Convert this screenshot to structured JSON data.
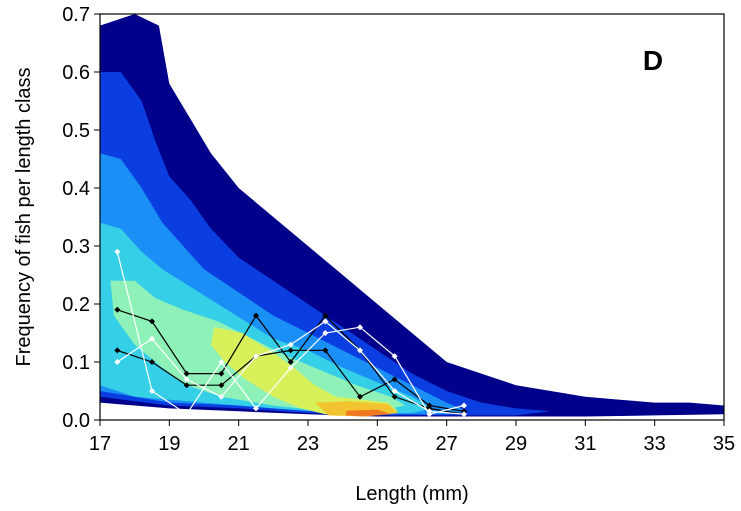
{
  "chart_data": {
    "type": "contour",
    "panel_label": "D",
    "xlabel": "Length (mm)",
    "ylabel": "Frequency  of fish per length class",
    "xlim": [
      17,
      35
    ],
    "ylim": [
      0,
      0.7
    ],
    "x_ticks": [
      "17",
      "19",
      "21",
      "23",
      "25",
      "27",
      "29",
      "31",
      "33",
      "35"
    ],
    "y_ticks": [
      "0.0",
      "0.1",
      "0.2",
      "0.3",
      "0.4",
      "0.5",
      "0.6",
      "0.7"
    ],
    "contour_colors": [
      "#00008b",
      "#0a3ee0",
      "#1a8ff5",
      "#35cfe8",
      "#8ef2b8",
      "#d8f05a",
      "#f4c430",
      "#f07820"
    ],
    "contour_levels": [
      {
        "level": 1,
        "color": "#00008b",
        "polygon": [
          [
            17,
            0.68
          ],
          [
            18,
            0.7
          ],
          [
            18.7,
            0.68
          ],
          [
            19,
            0.58
          ],
          [
            19.6,
            0.52
          ],
          [
            20.2,
            0.46
          ],
          [
            21,
            0.4
          ],
          [
            22,
            0.35
          ],
          [
            23,
            0.3
          ],
          [
            24,
            0.25
          ],
          [
            25,
            0.2
          ],
          [
            26,
            0.15
          ],
          [
            27,
            0.1
          ],
          [
            28,
            0.08
          ],
          [
            29,
            0.06
          ],
          [
            30,
            0.05
          ],
          [
            31,
            0.04
          ],
          [
            32,
            0.035
          ],
          [
            33,
            0.03
          ],
          [
            34,
            0.03
          ],
          [
            35,
            0.025
          ],
          [
            35,
            0.01
          ],
          [
            33,
            0.008
          ],
          [
            31,
            0.006
          ],
          [
            29,
            0.006
          ],
          [
            27,
            0.006
          ],
          [
            25,
            0.006
          ],
          [
            23,
            0.01
          ],
          [
            21,
            0.015
          ],
          [
            19,
            0.02
          ],
          [
            17,
            0.03
          ]
        ]
      },
      {
        "level": 2,
        "color": "#0a3ee0",
        "polygon": [
          [
            17,
            0.6
          ],
          [
            17.6,
            0.6
          ],
          [
            18.2,
            0.55
          ],
          [
            18.6,
            0.48
          ],
          [
            19,
            0.42
          ],
          [
            19.6,
            0.38
          ],
          [
            20.2,
            0.33
          ],
          [
            21,
            0.28
          ],
          [
            22,
            0.24
          ],
          [
            23,
            0.2
          ],
          [
            24,
            0.16
          ],
          [
            25,
            0.12
          ],
          [
            26,
            0.08
          ],
          [
            27,
            0.05
          ],
          [
            28,
            0.03
          ],
          [
            29,
            0.02
          ],
          [
            30,
            0.015
          ],
          [
            29,
            0.008
          ],
          [
            27,
            0.008
          ],
          [
            25,
            0.008
          ],
          [
            23,
            0.012
          ],
          [
            21,
            0.02
          ],
          [
            19,
            0.025
          ],
          [
            17,
            0.04
          ]
        ]
      },
      {
        "level": 3,
        "color": "#1a8ff5",
        "polygon": [
          [
            17,
            0.46
          ],
          [
            17.6,
            0.45
          ],
          [
            18.2,
            0.4
          ],
          [
            18.8,
            0.34
          ],
          [
            19.4,
            0.3
          ],
          [
            20,
            0.26
          ],
          [
            21,
            0.22
          ],
          [
            22,
            0.18
          ],
          [
            23,
            0.15
          ],
          [
            24,
            0.12
          ],
          [
            25,
            0.09
          ],
          [
            26,
            0.06
          ],
          [
            27,
            0.03
          ],
          [
            27.6,
            0.015
          ],
          [
            27,
            0.01
          ],
          [
            25,
            0.01
          ],
          [
            23,
            0.015
          ],
          [
            21,
            0.025
          ],
          [
            19,
            0.03
          ],
          [
            17,
            0.05
          ]
        ]
      },
      {
        "level": 4,
        "color": "#35cfe8",
        "polygon": [
          [
            17,
            0.34
          ],
          [
            17.6,
            0.33
          ],
          [
            18.2,
            0.29
          ],
          [
            18.8,
            0.26
          ],
          [
            19.6,
            0.23
          ],
          [
            20.4,
            0.2
          ],
          [
            21.2,
            0.17
          ],
          [
            22,
            0.14
          ],
          [
            23,
            0.12
          ],
          [
            24,
            0.09
          ],
          [
            25,
            0.065
          ],
          [
            26,
            0.04
          ],
          [
            26.6,
            0.02
          ],
          [
            26,
            0.012
          ],
          [
            24,
            0.012
          ],
          [
            22,
            0.02
          ],
          [
            20,
            0.03
          ],
          [
            18,
            0.04
          ],
          [
            17,
            0.06
          ]
        ]
      },
      {
        "level": 5,
        "color": "#8ef2b8",
        "polygon": [
          [
            17.3,
            0.24
          ],
          [
            18,
            0.24
          ],
          [
            18.6,
            0.21
          ],
          [
            19.4,
            0.19
          ],
          [
            20.4,
            0.17
          ],
          [
            21.4,
            0.14
          ],
          [
            22.4,
            0.11
          ],
          [
            23.4,
            0.085
          ],
          [
            24.4,
            0.06
          ],
          [
            25.4,
            0.04
          ],
          [
            25.8,
            0.025
          ],
          [
            25,
            0.015
          ],
          [
            23.5,
            0.015
          ],
          [
            22,
            0.025
          ],
          [
            20.5,
            0.04
          ],
          [
            19.5,
            0.06
          ],
          [
            18.8,
            0.09
          ],
          [
            18,
            0.13
          ],
          [
            17.4,
            0.18
          ]
        ]
      },
      {
        "level": 6,
        "color": "#d8f05a",
        "polygon": [
          [
            20.3,
            0.16
          ],
          [
            21.1,
            0.15
          ],
          [
            21.9,
            0.12
          ],
          [
            22.6,
            0.09
          ],
          [
            23.2,
            0.06
          ],
          [
            23.8,
            0.04
          ],
          [
            24.6,
            0.035
          ],
          [
            25.3,
            0.03
          ],
          [
            25.6,
            0.015
          ],
          [
            24.6,
            0.01
          ],
          [
            23.5,
            0.01
          ],
          [
            22.8,
            0.02
          ],
          [
            22,
            0.04
          ],
          [
            21.2,
            0.07
          ],
          [
            20.6,
            0.1
          ],
          [
            20.2,
            0.13
          ]
        ]
      },
      {
        "level": 7,
        "color": "#f4c430",
        "polygon": [
          [
            23.2,
            0.03
          ],
          [
            24.2,
            0.032
          ],
          [
            25.3,
            0.028
          ],
          [
            25.6,
            0.012
          ],
          [
            24.6,
            0.006
          ],
          [
            23.6,
            0.008
          ]
        ]
      },
      {
        "level": 8,
        "color": "#f07820",
        "polygon": [
          [
            24.1,
            0.016
          ],
          [
            25,
            0.018
          ],
          [
            25.4,
            0.01
          ],
          [
            24.6,
            0.006
          ],
          [
            24.1,
            0.008
          ]
        ]
      }
    ],
    "series": [
      {
        "marker": "black",
        "points": [
          [
            17.5,
            0.19
          ],
          [
            18.5,
            0.17
          ],
          [
            19.5,
            0.08
          ],
          [
            20.5,
            0.08
          ],
          [
            21.5,
            0.18
          ],
          [
            22.5,
            0.1
          ],
          [
            23.5,
            0.18
          ],
          [
            24.5,
            0.12
          ],
          [
            25.5,
            0.04
          ],
          [
            26.5,
            0.02
          ],
          [
            27.5,
            0.01
          ]
        ]
      },
      {
        "marker": "black",
        "points": [
          [
            17.5,
            0.12
          ],
          [
            18.5,
            0.1
          ],
          [
            19.5,
            0.06
          ],
          [
            20.5,
            0.06
          ],
          [
            21.5,
            0.11
          ],
          [
            22.5,
            0.12
          ],
          [
            23.5,
            0.12
          ],
          [
            24.5,
            0.04
          ],
          [
            25.5,
            0.07
          ],
          [
            26.5,
            0.025
          ],
          [
            27.5,
            0.015
          ]
        ]
      },
      {
        "marker": "white",
        "points": [
          [
            17.5,
            0.29
          ],
          [
            18.5,
            0.05
          ],
          [
            19.5,
            0.01
          ],
          [
            20.5,
            0.1
          ],
          [
            21.5,
            0.02
          ],
          [
            22.5,
            0.09
          ],
          [
            23.5,
            0.15
          ],
          [
            24.5,
            0.16
          ],
          [
            25.5,
            0.11
          ],
          [
            26.5,
            0.01
          ],
          [
            27.5,
            0.025
          ]
        ]
      },
      {
        "marker": "white",
        "points": [
          [
            17.5,
            0.1
          ],
          [
            18.5,
            0.14
          ],
          [
            19.5,
            0.07
          ],
          [
            20.5,
            0.04
          ],
          [
            21.5,
            0.11
          ],
          [
            22.5,
            0.13
          ],
          [
            23.5,
            0.17
          ],
          [
            24.5,
            0.12
          ],
          [
            25.5,
            0.05
          ],
          [
            26.5,
            0.015
          ],
          [
            27.5,
            0.01
          ]
        ]
      }
    ]
  }
}
